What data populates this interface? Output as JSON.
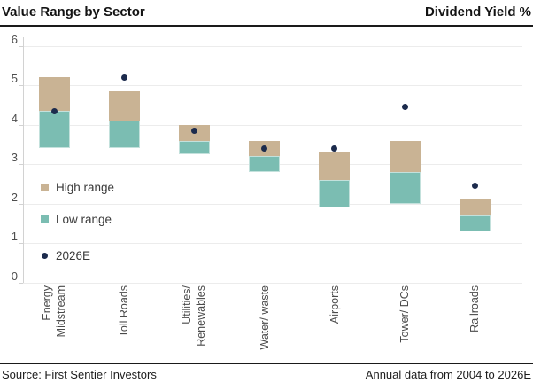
{
  "header": {
    "title_left": "Value Range by Sector",
    "title_right": "Dividend Yield %"
  },
  "footer": {
    "source": "Source: First Sentier Investors",
    "note": "Annual data from 2004 to 2026E"
  },
  "legend": [
    {
      "label": "High range",
      "type": "square",
      "color": "#c9b394"
    },
    {
      "label": "Low range",
      "type": "square",
      "color": "#7bbdb2"
    },
    {
      "label": "2026E",
      "type": "dot",
      "color": "#1c2b4d"
    }
  ],
  "colors": {
    "high_range": "#c9b394",
    "low_range": "#7bbdb2",
    "dot_2026e": "#1c2b4d",
    "gridline": "#ececec",
    "axis": "#d2d2d2",
    "text_dark": "#131313",
    "text_axis": "#4d4d4d"
  },
  "chart_data": {
    "type": "bar",
    "subtype": "floating-range-columns-with-points",
    "title": "Value Range by Sector",
    "ylabel": "Dividend Yield %",
    "xlabel": "",
    "ylim": [
      0,
      6
    ],
    "yticks": [
      0,
      1,
      2,
      3,
      4,
      5,
      6
    ],
    "grid": true,
    "legend_position": "inside-left",
    "categories": [
      [
        "Energy",
        "Midstream"
      ],
      [
        "Toll Roads"
      ],
      [
        "Utilities/",
        "Renewables"
      ],
      [
        "Water/ waste"
      ],
      [
        "Airports"
      ],
      [
        "Tower/ DCs"
      ],
      [
        "Railroads"
      ]
    ],
    "series": [
      {
        "name": "Low range",
        "type": "range",
        "color": "#7bbdb2",
        "from": [
          3.4,
          3.4,
          3.25,
          2.8,
          1.9,
          2.0,
          1.3
        ],
        "to": [
          4.35,
          4.1,
          3.6,
          3.2,
          2.6,
          2.8,
          1.7
        ]
      },
      {
        "name": "High range",
        "type": "range",
        "color": "#c9b394",
        "from": [
          4.35,
          4.1,
          3.6,
          3.2,
          2.6,
          2.8,
          1.7
        ],
        "to": [
          5.2,
          4.85,
          4.0,
          3.6,
          3.3,
          3.6,
          2.1
        ]
      },
      {
        "name": "2026E",
        "type": "point",
        "color": "#1c2b4d",
        "values": [
          4.35,
          5.2,
          3.85,
          3.4,
          3.4,
          4.45,
          2.45
        ]
      }
    ]
  }
}
